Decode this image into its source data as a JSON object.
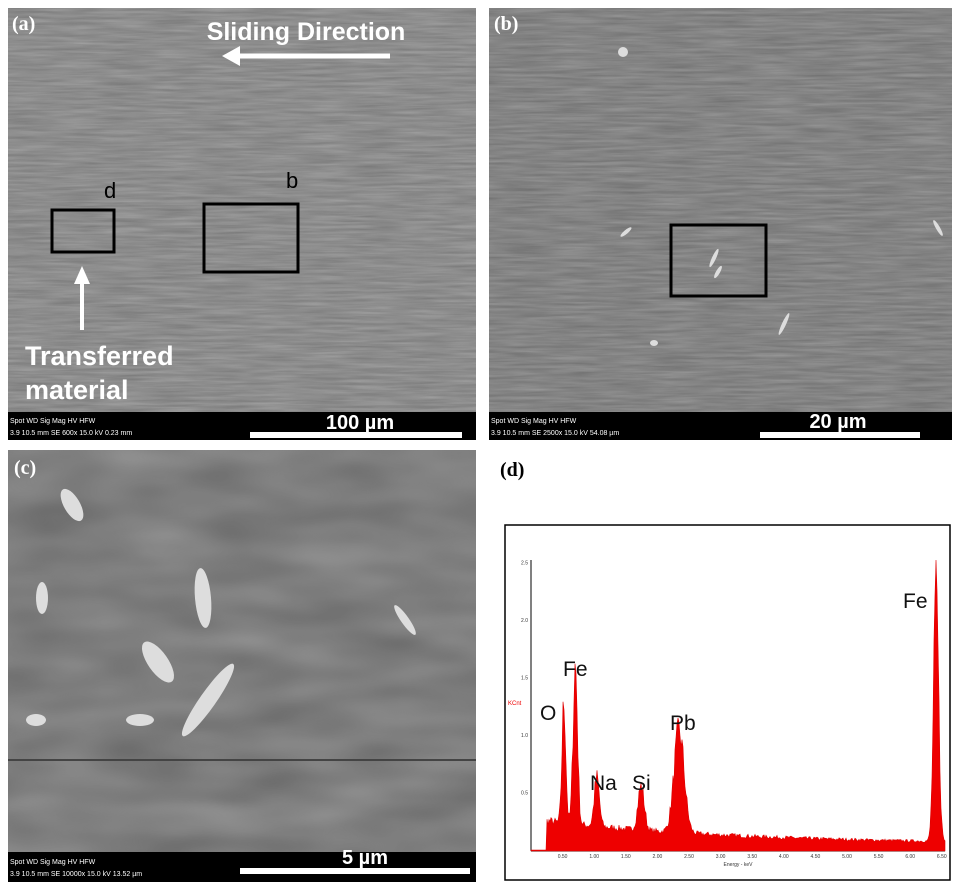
{
  "panels": [
    {
      "label": "(a)",
      "sliding_direction": "Sliding Direction",
      "box_labels": [
        "d",
        "b"
      ],
      "transferred": [
        "Transferred",
        "material"
      ],
      "info_header": "Spot  WD  Sig  Mag  HV  HFW",
      "info_values": "3.9  10.5 mm  SE  600x  15.0 kV  0.23 mm",
      "scale_bar": "100 µm"
    },
    {
      "label": "(b)",
      "info_header": "Spot  WD  Sig  Mag  HV  HFW",
      "info_values": "3.9  10.5 mm  SE  2500x  15.0 kV  54.08 µm",
      "scale_bar": "20 µm"
    },
    {
      "label": "(c)",
      "info_header": "Spot  WD  Sig  Mag  HV  HFW",
      "info_values": "3.9  10.5 mm  SE  10000x  15.0 kV  13.52 µm",
      "scale_bar": "5 µm"
    }
  ],
  "spectrum": {
    "label": "(d)",
    "y_label": "KCnt",
    "x_label": "Energy - keV",
    "yticks": [
      "0.5",
      "1.0",
      "1.5",
      "2.0",
      "2.5"
    ],
    "xticks": [
      "0.50",
      "1.00",
      "1.50",
      "2.00",
      "2.50",
      "3.00",
      "3.50",
      "4.00",
      "4.50",
      "5.00",
      "5.50",
      "6.00",
      "6.50"
    ],
    "peaks": [
      "O",
      "Fe",
      "Na",
      "Si",
      "Pb",
      "Fe"
    ]
  }
}
